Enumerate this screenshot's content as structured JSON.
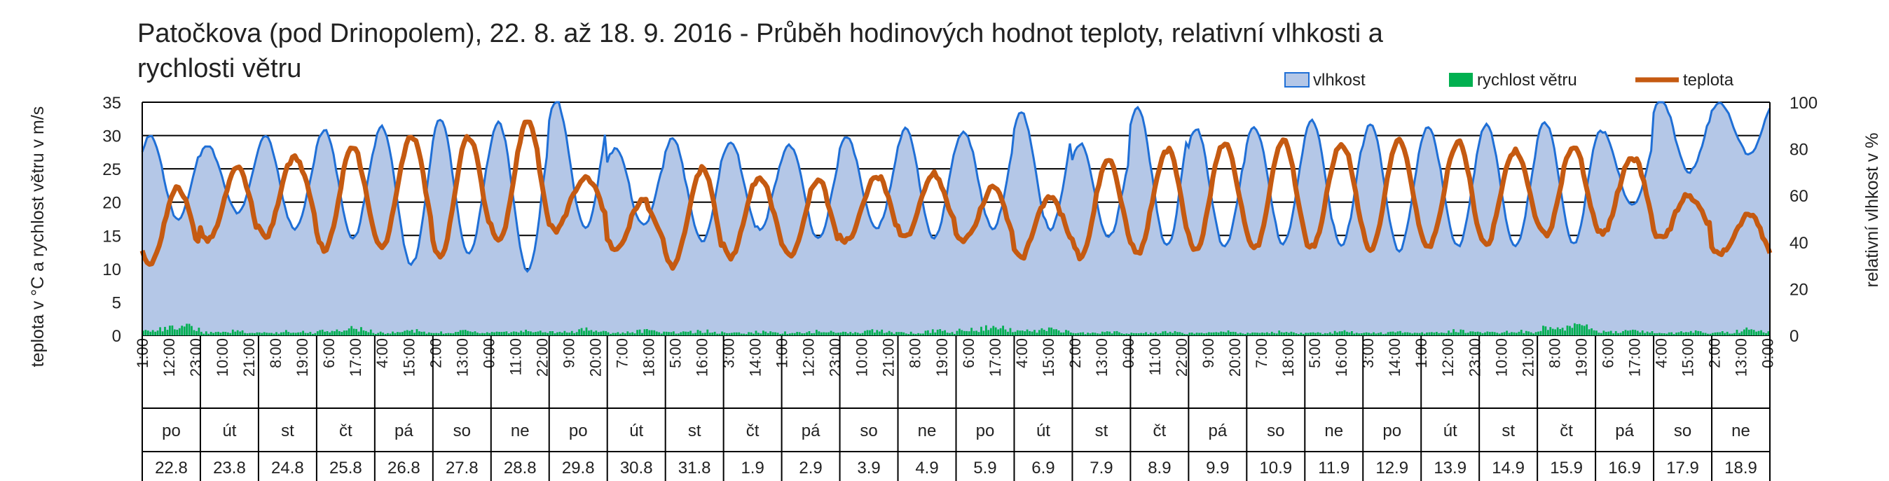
{
  "chart_data": {
    "type": "area",
    "title_lines": [
      "Patočkova (pod Drinopolem), 22. 8. až 18. 9. 2016 - Průběh hodinových hodnot teploty, relativní vlhkosti a",
      "rychlosti větru"
    ],
    "ylabel_left": "teplota v °C a rychlost větru v m/s",
    "ylabel_right": "relativní vlhkost v %",
    "ylim_left": [
      0,
      35
    ],
    "ylim_right": [
      0,
      100
    ],
    "yticks_left": [
      "0",
      "5",
      "10",
      "15",
      "20",
      "25",
      "30",
      "35"
    ],
    "yticks_right": [
      "0",
      "20",
      "40",
      "60",
      "80",
      "100"
    ],
    "grid": true,
    "legend_position": "top-right",
    "legend": [
      {
        "name": "vlhkost",
        "color": "#b4c7e7",
        "stroke": "#1f6fd6",
        "kind": "area"
      },
      {
        "name": "rychlost větru",
        "color": "#00b050",
        "kind": "bar"
      },
      {
        "name": "teplota",
        "color": "#c55a11",
        "kind": "line"
      }
    ],
    "hour_labels": [
      "1:00",
      "12:00",
      "23:00",
      "10:00",
      "21:00",
      "8:00",
      "19:00",
      "6:00",
      "17:00",
      "4:00",
      "15:00",
      "2:00",
      "13:00",
      "0:00",
      "11:00",
      "22:00",
      "9:00",
      "20:00",
      "7:00",
      "18:00",
      "5:00",
      "16:00",
      "3:00",
      "14:00",
      "1:00",
      "12:00",
      "23:00",
      "10:00",
      "21:00",
      "8:00",
      "19:00",
      "6:00",
      "17:00",
      "4:00",
      "15:00",
      "2:00",
      "13:00",
      "0:00",
      "11:00",
      "22:00",
      "9:00",
      "20:00",
      "7:00",
      "18:00",
      "5:00",
      "16:00",
      "3:00",
      "14:00",
      "1:00",
      "12:00",
      "23:00",
      "10:00",
      "21:00",
      "8:00",
      "19:00",
      "6:00",
      "17:00",
      "4:00",
      "15:00",
      "2:00",
      "13:00",
      "0:00"
    ],
    "days": [
      {
        "weekday": "po",
        "date": "22.8"
      },
      {
        "weekday": "út",
        "date": "23.8"
      },
      {
        "weekday": "st",
        "date": "24.8"
      },
      {
        "weekday": "čt",
        "date": "25.8"
      },
      {
        "weekday": "pá",
        "date": "26.8"
      },
      {
        "weekday": "so",
        "date": "27.8"
      },
      {
        "weekday": "ne",
        "date": "28.8"
      },
      {
        "weekday": "po",
        "date": "29.8"
      },
      {
        "weekday": "út",
        "date": "30.8"
      },
      {
        "weekday": "st",
        "date": "31.8"
      },
      {
        "weekday": "čt",
        "date": "1.9"
      },
      {
        "weekday": "pá",
        "date": "2.9"
      },
      {
        "weekday": "so",
        "date": "3.9"
      },
      {
        "weekday": "ne",
        "date": "4.9"
      },
      {
        "weekday": "po",
        "date": "5.9"
      },
      {
        "weekday": "út",
        "date": "6.9"
      },
      {
        "weekday": "st",
        "date": "7.9"
      },
      {
        "weekday": "čt",
        "date": "8.9"
      },
      {
        "weekday": "pá",
        "date": "9.9"
      },
      {
        "weekday": "so",
        "date": "10.9"
      },
      {
        "weekday": "ne",
        "date": "11.9"
      },
      {
        "weekday": "po",
        "date": "12.9"
      },
      {
        "weekday": "út",
        "date": "13.9"
      },
      {
        "weekday": "st",
        "date": "14.9"
      },
      {
        "weekday": "čt",
        "date": "15.9"
      },
      {
        "weekday": "pá",
        "date": "16.9"
      },
      {
        "weekday": "so",
        "date": "17.9"
      },
      {
        "weekday": "ne",
        "date": "18.9"
      }
    ],
    "daily_series_approx": {
      "temperature_min_c": [
        11,
        14,
        15,
        13,
        13,
        12,
        14,
        16,
        13,
        10,
        12,
        12,
        14,
        15,
        14,
        12,
        12,
        12,
        13,
        13,
        13,
        13,
        13,
        14,
        15,
        15,
        15,
        12
      ],
      "temperature_max_c": [
        22,
        25,
        27,
        28,
        30,
        30,
        32,
        24,
        20,
        25,
        24,
        23,
        24,
        24,
        22,
        21,
        26,
        28,
        29,
        29,
        29,
        29,
        29,
        28,
        28,
        27,
        21,
        18
      ],
      "humidity_min_pct": [
        50,
        53,
        45,
        42,
        30,
        35,
        28,
        45,
        48,
        40,
        45,
        42,
        45,
        42,
        46,
        45,
        43,
        38,
        38,
        40,
        38,
        37,
        38,
        38,
        40,
        55,
        70,
        78
      ],
      "humidity_max_pct": [
        85,
        82,
        85,
        88,
        90,
        92,
        92,
        100,
        80,
        85,
        82,
        82,
        85,
        88,
        88,
        95,
        82,
        98,
        88,
        90,
        92,
        90,
        90,
        90,
        92,
        88,
        100,
        100
      ],
      "wind_max_ms": [
        2.2,
        1.0,
        1.0,
        1.5,
        1.0,
        1.0,
        1.0,
        1.2,
        1.0,
        1.0,
        0.8,
        1.0,
        1.0,
        1.0,
        2.0,
        1.5,
        0.8,
        0.8,
        0.8,
        0.8,
        0.8,
        0.8,
        1.0,
        1.0,
        2.5,
        1.2,
        0.8,
        1.2
      ]
    }
  }
}
